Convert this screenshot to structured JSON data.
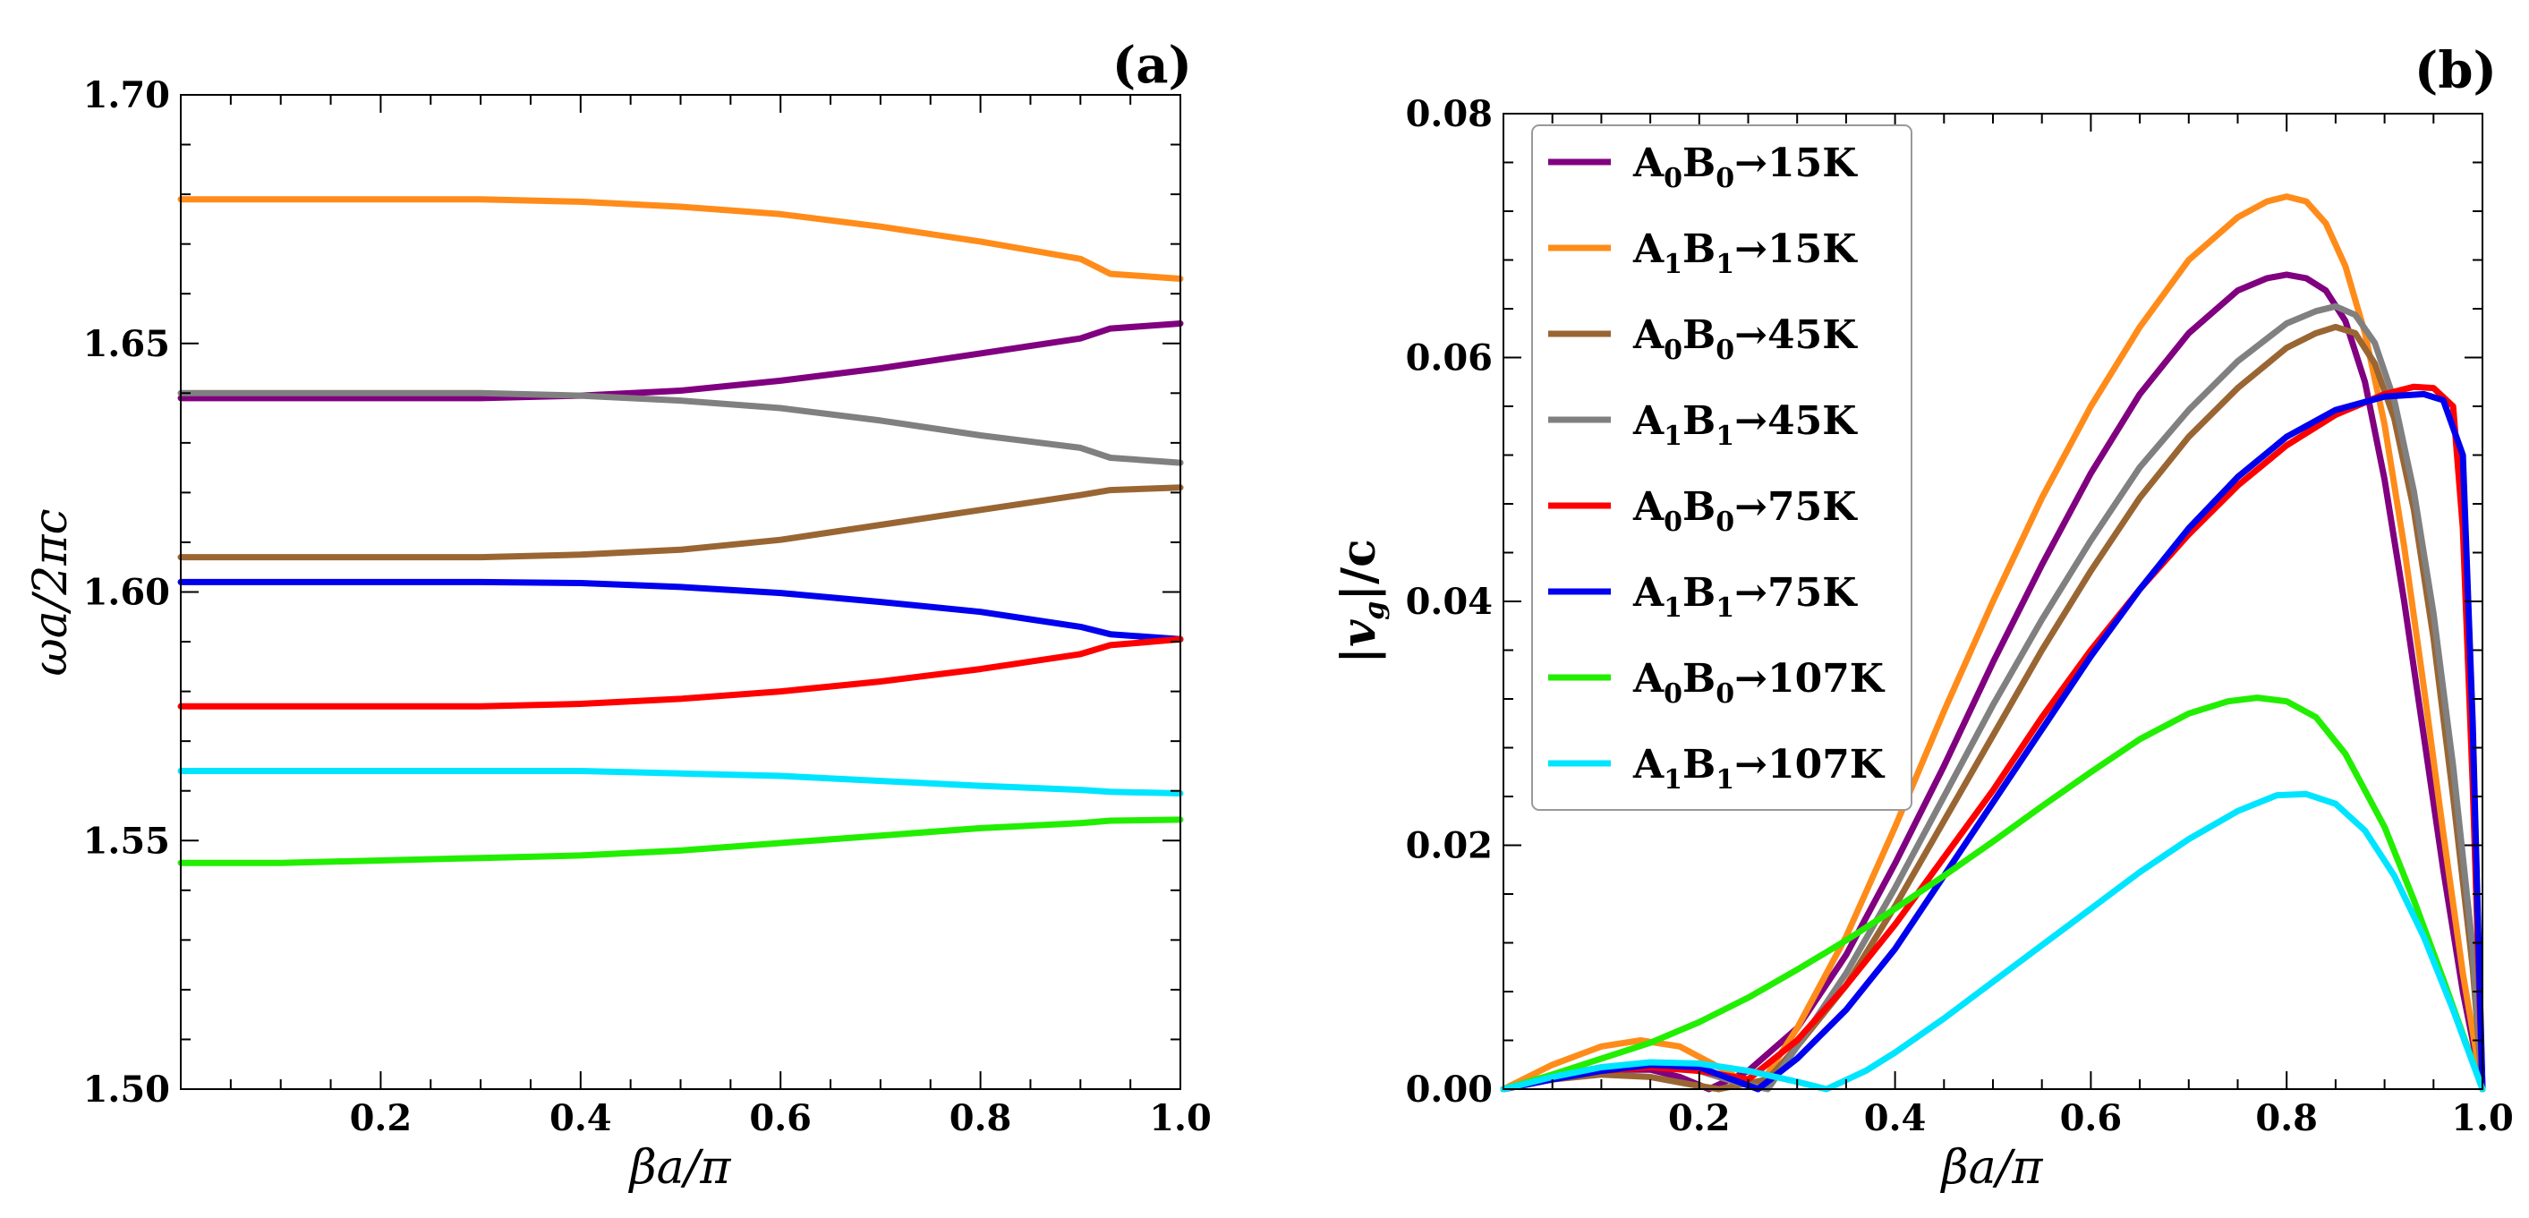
{
  "chart_data": [
    {
      "type": "line",
      "panel_label": "(a)",
      "xlabel": "βa/π",
      "ylabel": "ωa/2πc",
      "xlim": [
        0,
        1
      ],
      "ylim": [
        1.5,
        1.7
      ],
      "xticks": [
        "0.2",
        "0.4",
        "0.6",
        "0.8",
        "1.0"
      ],
      "yticks": [
        "1.50",
        "1.55",
        "1.60",
        "1.65",
        "1.70"
      ],
      "x": [
        0,
        0.1,
        0.2,
        0.3,
        0.4,
        0.5,
        0.6,
        0.7,
        0.8,
        0.9,
        0.93,
        1.0
      ],
      "series": [
        {
          "name": "orange",
          "color": "#ff8c1a",
          "values": [
            1.679,
            1.679,
            1.679,
            1.679,
            1.6785,
            1.6775,
            1.676,
            1.6735,
            1.6705,
            1.667,
            1.664,
            1.663
          ]
        },
        {
          "name": "purple",
          "color": "#800080",
          "values": [
            1.639,
            1.639,
            1.639,
            1.639,
            1.6395,
            1.6405,
            1.6425,
            1.645,
            1.648,
            1.651,
            1.653,
            1.654
          ]
        },
        {
          "name": "gray",
          "color": "#808080",
          "values": [
            1.64,
            1.64,
            1.64,
            1.64,
            1.6395,
            1.6385,
            1.637,
            1.6345,
            1.6315,
            1.629,
            1.627,
            1.626
          ]
        },
        {
          "name": "brown",
          "color": "#996633",
          "values": [
            1.607,
            1.607,
            1.607,
            1.607,
            1.6075,
            1.6085,
            1.6105,
            1.6135,
            1.6165,
            1.6195,
            1.6205,
            1.621
          ]
        },
        {
          "name": "blue",
          "color": "#0000ee",
          "values": [
            1.602,
            1.602,
            1.602,
            1.602,
            1.6018,
            1.601,
            1.5998,
            1.598,
            1.596,
            1.593,
            1.5915,
            1.5905
          ]
        },
        {
          "name": "red",
          "color": "#ff0000",
          "values": [
            1.577,
            1.577,
            1.577,
            1.577,
            1.5775,
            1.5785,
            1.58,
            1.582,
            1.5845,
            1.5875,
            1.5893,
            1.5905
          ]
        },
        {
          "name": "cyan",
          "color": "#00e5ff",
          "values": [
            1.564,
            1.564,
            1.564,
            1.564,
            1.564,
            1.5635,
            1.563,
            1.562,
            1.561,
            1.5602,
            1.5598,
            1.5595
          ]
        },
        {
          "name": "green",
          "color": "#22ee00",
          "values": [
            1.5455,
            1.5455,
            1.546,
            1.5465,
            1.547,
            1.548,
            1.5495,
            1.551,
            1.5525,
            1.5535,
            1.554,
            1.5542
          ]
        }
      ]
    },
    {
      "type": "line",
      "panel_label": "(b)",
      "xlabel": "βa/π",
      "ylabel": "|vg|/c",
      "xlim": [
        0,
        1
      ],
      "ylim": [
        0,
        0.08
      ],
      "xticks": [
        "0.2",
        "0.4",
        "0.6",
        "0.8",
        "1.0"
      ],
      "yticks": [
        "0.00",
        "0.02",
        "0.04",
        "0.06",
        "0.08"
      ],
      "legend_position": "top-left",
      "series": [
        {
          "name": "A0B0→15K",
          "legend": {
            "a": "0",
            "b": "0",
            "temp": "15K"
          },
          "color": "#800080",
          "x": [
            0,
            0.05,
            0.1,
            0.15,
            0.18,
            0.21,
            0.25,
            0.3,
            0.35,
            0.4,
            0.45,
            0.5,
            0.55,
            0.6,
            0.65,
            0.7,
            0.75,
            0.78,
            0.8,
            0.82,
            0.84,
            0.86,
            0.88,
            0.9,
            0.92,
            0.94,
            0.96,
            0.98,
            1.0
          ],
          "values": [
            0,
            0.0008,
            0.0016,
            0.0016,
            0.001,
            0,
            0.0015,
            0.005,
            0.011,
            0.0185,
            0.0265,
            0.035,
            0.043,
            0.0505,
            0.057,
            0.062,
            0.0655,
            0.0665,
            0.0668,
            0.0665,
            0.0655,
            0.063,
            0.058,
            0.05,
            0.04,
            0.029,
            0.018,
            0.008,
            0
          ]
        },
        {
          "name": "A1B1→15K",
          "legend": {
            "a": "1",
            "b": "1",
            "temp": "15K"
          },
          "color": "#ff8c1a",
          "x": [
            0,
            0.05,
            0.1,
            0.14,
            0.18,
            0.22,
            0.26,
            0.3,
            0.35,
            0.4,
            0.45,
            0.5,
            0.55,
            0.6,
            0.65,
            0.7,
            0.75,
            0.78,
            0.8,
            0.82,
            0.84,
            0.86,
            0.88,
            0.9,
            0.92,
            0.94,
            0.96,
            0.98,
            1.0
          ],
          "values": [
            0,
            0.002,
            0.0035,
            0.004,
            0.0035,
            0.0018,
            0,
            0.005,
            0.0125,
            0.0215,
            0.031,
            0.04,
            0.0485,
            0.056,
            0.0625,
            0.068,
            0.0715,
            0.0728,
            0.0732,
            0.0728,
            0.071,
            0.0675,
            0.062,
            0.0545,
            0.0445,
            0.033,
            0.021,
            0.0095,
            0
          ]
        },
        {
          "name": "A0B0→45K",
          "legend": {
            "a": "0",
            "b": "0",
            "temp": "45K"
          },
          "color": "#996633",
          "x": [
            0,
            0.05,
            0.1,
            0.15,
            0.19,
            0.22,
            0.27,
            0.3,
            0.35,
            0.4,
            0.45,
            0.5,
            0.55,
            0.6,
            0.65,
            0.7,
            0.75,
            0.8,
            0.83,
            0.85,
            0.87,
            0.89,
            0.91,
            0.93,
            0.95,
            0.97,
            0.99,
            1.0
          ],
          "values": [
            0,
            0.0008,
            0.0012,
            0.001,
            0.0004,
            0,
            0.0008,
            0.0035,
            0.0085,
            0.015,
            0.022,
            0.029,
            0.036,
            0.0425,
            0.0485,
            0.0535,
            0.0575,
            0.0608,
            0.062,
            0.0625,
            0.062,
            0.0595,
            0.055,
            0.0475,
            0.037,
            0.024,
            0.01,
            0
          ]
        },
        {
          "name": "A1B1→45K",
          "legend": {
            "a": "1",
            "b": "1",
            "temp": "45K"
          },
          "color": "#808080",
          "x": [
            0,
            0.05,
            0.1,
            0.15,
            0.2,
            0.24,
            0.27,
            0.3,
            0.35,
            0.4,
            0.45,
            0.5,
            0.55,
            0.6,
            0.65,
            0.7,
            0.75,
            0.8,
            0.83,
            0.85,
            0.87,
            0.89,
            0.91,
            0.93,
            0.95,
            0.97,
            0.99,
            1.0
          ],
          "values": [
            0,
            0.001,
            0.0018,
            0.002,
            0.0015,
            0.0005,
            0,
            0.0035,
            0.0095,
            0.0165,
            0.024,
            0.0315,
            0.0385,
            0.045,
            0.051,
            0.0557,
            0.0597,
            0.0628,
            0.0638,
            0.0642,
            0.0635,
            0.0612,
            0.0565,
            0.049,
            0.039,
            0.0265,
            0.0115,
            0
          ]
        },
        {
          "name": "A0B0→75K",
          "legend": {
            "a": "0",
            "b": "0",
            "temp": "75K"
          },
          "color": "#ff0000",
          "x": [
            0,
            0.05,
            0.1,
            0.15,
            0.2,
            0.25,
            0.3,
            0.35,
            0.4,
            0.45,
            0.5,
            0.55,
            0.6,
            0.65,
            0.7,
            0.75,
            0.8,
            0.85,
            0.9,
            0.93,
            0.95,
            0.97,
            0.98,
            0.99,
            1.0
          ],
          "values": [
            0,
            0.0008,
            0.0015,
            0.0018,
            0.0015,
            0.0008,
            0.004,
            0.0085,
            0.0135,
            0.019,
            0.0245,
            0.0305,
            0.036,
            0.041,
            0.0455,
            0.0495,
            0.0528,
            0.0553,
            0.057,
            0.0576,
            0.0575,
            0.056,
            0.046,
            0.025,
            0
          ]
        },
        {
          "name": "A1B1→75K",
          "legend": {
            "a": "1",
            "b": "1",
            "temp": "75K"
          },
          "color": "#0000ee",
          "x": [
            0,
            0.05,
            0.1,
            0.15,
            0.2,
            0.24,
            0.26,
            0.3,
            0.35,
            0.4,
            0.45,
            0.5,
            0.55,
            0.6,
            0.65,
            0.7,
            0.75,
            0.8,
            0.85,
            0.9,
            0.94,
            0.96,
            0.98,
            0.99,
            1.0
          ],
          "values": [
            0,
            0.0008,
            0.0015,
            0.002,
            0.0018,
            0.0006,
            0,
            0.0025,
            0.0065,
            0.0115,
            0.0175,
            0.0235,
            0.0295,
            0.0355,
            0.041,
            0.046,
            0.0502,
            0.0535,
            0.0557,
            0.0568,
            0.057,
            0.0565,
            0.052,
            0.03,
            0
          ]
        },
        {
          "name": "A0B0→107K",
          "legend": {
            "a": "0",
            "b": "0",
            "temp": "107K"
          },
          "color": "#22ee00",
          "x": [
            0,
            0.05,
            0.1,
            0.15,
            0.2,
            0.25,
            0.3,
            0.35,
            0.4,
            0.45,
            0.5,
            0.55,
            0.6,
            0.65,
            0.7,
            0.74,
            0.77,
            0.8,
            0.83,
            0.86,
            0.9,
            0.93,
            0.96,
            0.98,
            1.0
          ],
          "values": [
            0,
            0.0012,
            0.0025,
            0.0038,
            0.0055,
            0.0075,
            0.0098,
            0.0122,
            0.0148,
            0.0175,
            0.0203,
            0.0232,
            0.026,
            0.0287,
            0.0308,
            0.0318,
            0.0321,
            0.0318,
            0.0305,
            0.0275,
            0.0215,
            0.0155,
            0.009,
            0.0045,
            0
          ]
        },
        {
          "name": "A1B1→107K",
          "legend": {
            "a": "1",
            "b": "1",
            "temp": "107K"
          },
          "color": "#00e5ff",
          "x": [
            0,
            0.05,
            0.1,
            0.15,
            0.2,
            0.25,
            0.3,
            0.33,
            0.37,
            0.4,
            0.45,
            0.5,
            0.55,
            0.6,
            0.65,
            0.7,
            0.75,
            0.79,
            0.82,
            0.85,
            0.88,
            0.91,
            0.94,
            0.97,
            1.0
          ],
          "values": [
            0,
            0.001,
            0.0018,
            0.0022,
            0.0021,
            0.0015,
            0.0006,
            0,
            0.0015,
            0.003,
            0.0058,
            0.0088,
            0.0118,
            0.0148,
            0.0178,
            0.0205,
            0.0228,
            0.0241,
            0.0242,
            0.0234,
            0.0212,
            0.0175,
            0.0125,
            0.0065,
            0
          ]
        }
      ]
    }
  ]
}
